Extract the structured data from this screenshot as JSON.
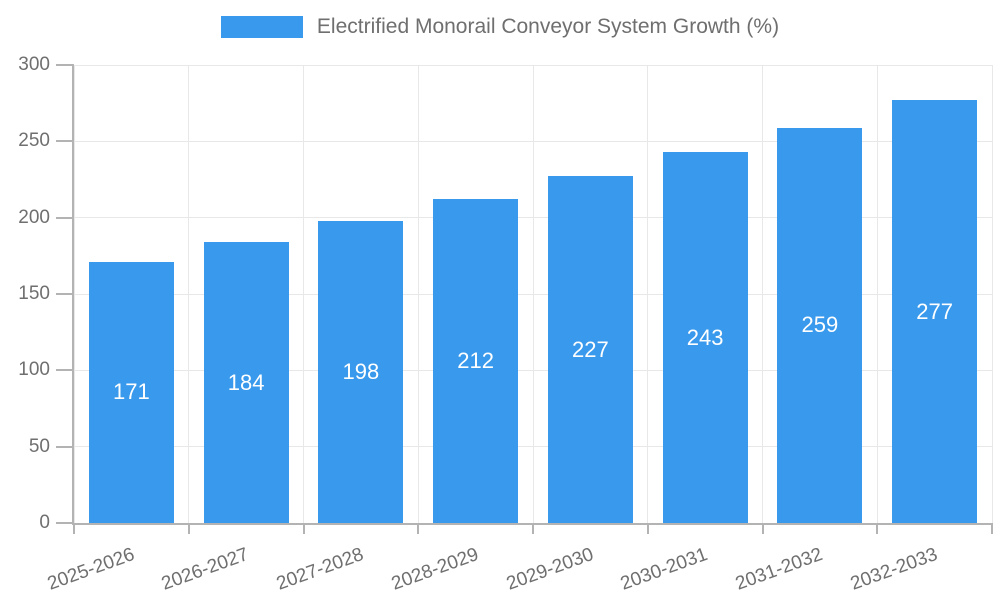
{
  "chart_data": {
    "type": "bar",
    "title": "Electrified Monorail Conveyor System Growth (%)",
    "legend": [
      "Electrified Monorail Conveyor System Growth (%)"
    ],
    "legend_position": "top-center",
    "categories": [
      "2025-2026",
      "2026-2027",
      "2027-2028",
      "2028-2029",
      "2029-2030",
      "2030-2031",
      "2031-2032",
      "2032-2033"
    ],
    "values": [
      171,
      184,
      198,
      212,
      227,
      243,
      259,
      277
    ],
    "value_labels_shown": true,
    "xlabel": "",
    "ylabel": "",
    "ylim": [
      0,
      300
    ],
    "yticks": [
      0,
      50,
      100,
      150,
      200,
      250,
      300
    ],
    "grid": "both",
    "x_tick_rotation_deg": -20,
    "colors": {
      "bar": "#3999ec",
      "grid": "#e8e8e8",
      "axis": "#b3b3b3",
      "tick_text": "#6f6f6f",
      "value_label": "#ffffff",
      "background": "#ffffff"
    }
  }
}
